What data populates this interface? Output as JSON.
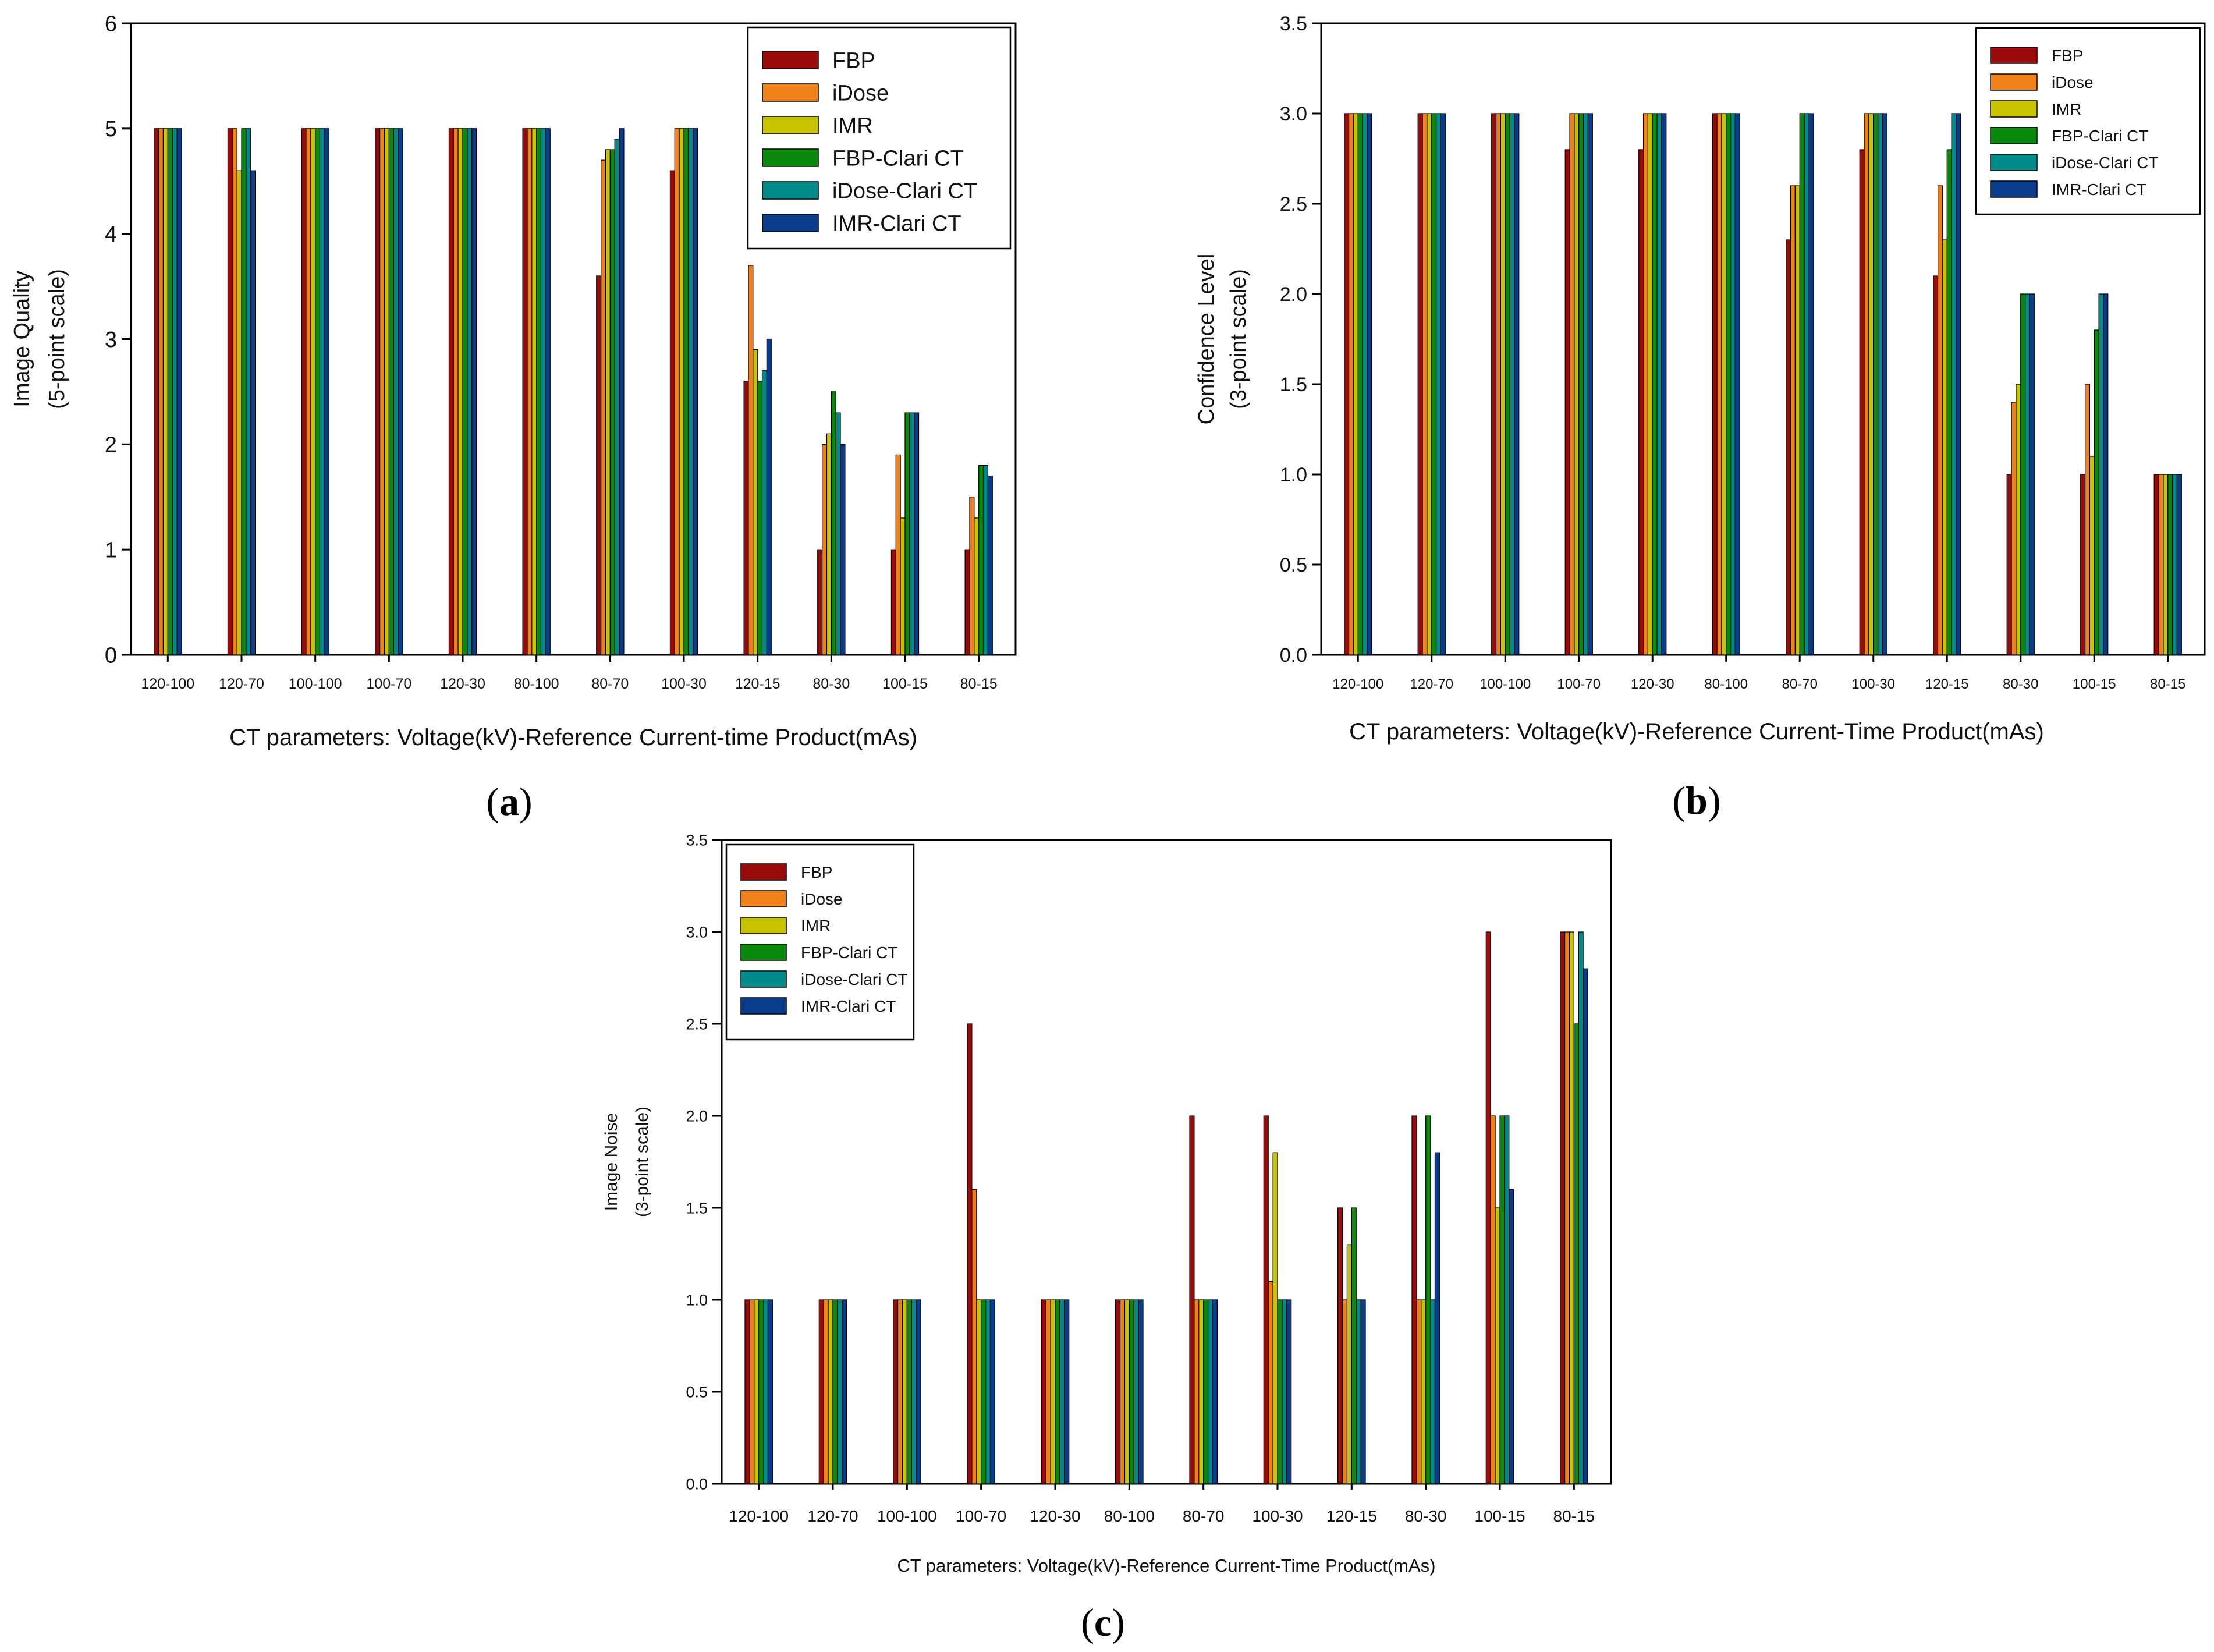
{
  "colors": [
    "#9b0a0a",
    "#f08018",
    "#c8c400",
    "#0a8a0a",
    "#008b8b",
    "#0a3c8c"
  ],
  "chart_data": [
    {
      "type": "bar",
      "panel": "(a)",
      "caption": {
        "open": "(",
        "letter": "a",
        "close": ")"
      },
      "ylabel_line1": "Image Quality",
      "ylabel_line2": "(5-point scale)",
      "xlabel": "CT parameters: Voltage(kV)-Reference Current-time Product(mAs)",
      "ylim": [
        0,
        6
      ],
      "yticks": [
        "0",
        "1",
        "2",
        "3",
        "4",
        "5",
        "6"
      ],
      "ytick_values": [
        0,
        1,
        2,
        3,
        4,
        5,
        6
      ],
      "legend_position": "top-right",
      "categories": [
        "120-100",
        "120-70",
        "100-100",
        "100-70",
        "120-30",
        "80-100",
        "80-70",
        "100-30",
        "120-15",
        "80-30",
        "100-15",
        "80-15"
      ],
      "series": [
        {
          "name": "FBP",
          "values": [
            5,
            5,
            5,
            5,
            5,
            5,
            3.6,
            4.6,
            2.6,
            1.0,
            1.0,
            1.0
          ]
        },
        {
          "name": "iDose",
          "values": [
            5,
            5,
            5,
            5,
            5,
            5,
            4.7,
            5,
            3.7,
            2.0,
            1.9,
            1.5
          ]
        },
        {
          "name": "IMR",
          "values": [
            5,
            4.6,
            5,
            5,
            5,
            5,
            4.8,
            5,
            2.9,
            2.1,
            1.3,
            1.3
          ]
        },
        {
          "name": "FBP-Clari CT",
          "values": [
            5,
            5,
            5,
            5,
            5,
            5,
            4.8,
            5,
            2.6,
            2.5,
            2.3,
            1.8
          ]
        },
        {
          "name": "iDose-Clari CT",
          "values": [
            5,
            5,
            5,
            5,
            5,
            5,
            4.9,
            5,
            2.7,
            2.3,
            2.3,
            1.8
          ]
        },
        {
          "name": "IMR-Clari CT",
          "values": [
            5,
            4.6,
            5,
            5,
            5,
            5,
            5.0,
            5,
            3.0,
            2.0,
            2.3,
            1.7
          ]
        }
      ]
    },
    {
      "type": "bar",
      "panel": "(b)",
      "caption": {
        "open": "(",
        "letter": "b",
        "close": ")"
      },
      "ylabel_line1": "Confidence Level",
      "ylabel_line2": "(3-point scale)",
      "xlabel": "CT parameters: Voltage(kV)-Reference Current-Time Product(mAs)",
      "ylim": [
        0,
        3.5
      ],
      "yticks": [
        "0.0",
        "0.5",
        "1.0",
        "1.5",
        "2.0",
        "2.5",
        "3.0",
        "3.5"
      ],
      "ytick_values": [
        0,
        0.5,
        1,
        1.5,
        2,
        2.5,
        3,
        3.5
      ],
      "legend_position": "top-right",
      "categories": [
        "120-100",
        "120-70",
        "100-100",
        "100-70",
        "120-30",
        "80-100",
        "80-70",
        "100-30",
        "120-15",
        "80-30",
        "100-15",
        "80-15"
      ],
      "series": [
        {
          "name": "FBP",
          "values": [
            3,
            3,
            3,
            2.8,
            2.8,
            3,
            2.3,
            2.8,
            2.1,
            1.0,
            1.0,
            1.0
          ]
        },
        {
          "name": "iDose",
          "values": [
            3,
            3,
            3,
            3,
            3,
            3,
            2.6,
            3,
            2.6,
            1.4,
            1.5,
            1.0
          ]
        },
        {
          "name": "IMR",
          "values": [
            3,
            3,
            3,
            3,
            3,
            3,
            2.6,
            3,
            2.3,
            1.5,
            1.1,
            1.0
          ]
        },
        {
          "name": "FBP-Clari CT",
          "values": [
            3,
            3,
            3,
            3,
            3,
            3,
            3,
            3,
            2.8,
            2.0,
            1.8,
            1.0
          ]
        },
        {
          "name": "iDose-Clari CT",
          "values": [
            3,
            3,
            3,
            3,
            3,
            3,
            3,
            3,
            3,
            2.0,
            2.0,
            1.0
          ]
        },
        {
          "name": "IMR-Clari CT",
          "values": [
            3,
            3,
            3,
            3,
            3,
            3,
            3,
            3,
            3,
            2.0,
            2.0,
            1.0
          ]
        }
      ]
    },
    {
      "type": "bar",
      "panel": "(c)",
      "caption": {
        "open": "(",
        "letter": "c",
        "close": ")"
      },
      "ylabel_line1": "Image Noise",
      "ylabel_line2": "(3-point scale)",
      "xlabel": "CT parameters: Voltage(kV)-Reference Current-Time Product(mAs)",
      "ylim": [
        0,
        3.5
      ],
      "yticks": [
        "0.0",
        "0.5",
        "1.0",
        "1.5",
        "2.0",
        "2.5",
        "3.0",
        "3.5"
      ],
      "ytick_values": [
        0,
        0.5,
        1,
        1.5,
        2,
        2.5,
        3,
        3.5
      ],
      "legend_position": "top-left",
      "categories": [
        "120-100",
        "120-70",
        "100-100",
        "100-70",
        "120-30",
        "80-100",
        "80-70",
        "100-30",
        "120-15",
        "80-30",
        "100-15",
        "80-15"
      ],
      "series": [
        {
          "name": "FBP",
          "values": [
            1,
            1,
            1,
            2.5,
            1,
            1,
            2.0,
            2.0,
            1.5,
            2.0,
            3.0,
            3.0
          ]
        },
        {
          "name": "iDose",
          "values": [
            1,
            1,
            1,
            1.6,
            1,
            1,
            1,
            1.1,
            1.0,
            1.0,
            2.0,
            3.0
          ]
        },
        {
          "name": "IMR",
          "values": [
            1,
            1,
            1,
            1,
            1,
            1,
            1,
            1.8,
            1.3,
            1.0,
            1.5,
            3.0
          ]
        },
        {
          "name": "FBP-Clari CT",
          "values": [
            1,
            1,
            1,
            1,
            1,
            1,
            1,
            1.0,
            1.5,
            2.0,
            2.0,
            2.5
          ]
        },
        {
          "name": "iDose-Clari CT",
          "values": [
            1,
            1,
            1,
            1,
            1,
            1,
            1,
            1.0,
            1.0,
            1.0,
            2.0,
            3.0
          ]
        },
        {
          "name": "IMR-Clari CT",
          "values": [
            1,
            1,
            1,
            1,
            1,
            1,
            1,
            1.0,
            1.0,
            1.8,
            1.6,
            2.8
          ]
        }
      ]
    }
  ]
}
